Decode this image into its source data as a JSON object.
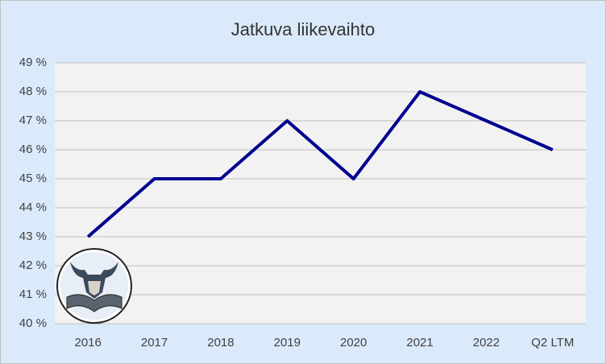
{
  "chart_data": {
    "type": "line",
    "title": "Jatkuva liikevaihto",
    "categories": [
      "2016",
      "2017",
      "2018",
      "2019",
      "2020",
      "2021",
      "2022",
      "Q2 LTM"
    ],
    "values": [
      43,
      45,
      45,
      47,
      45,
      48,
      47,
      46
    ],
    "color": "#000090",
    "ylim": [
      40,
      49
    ],
    "yticks": [
      {
        "value": 40,
        "label": "40 %"
      },
      {
        "value": 41,
        "label": "41 %"
      },
      {
        "value": 42,
        "label": "42 %"
      },
      {
        "value": 43,
        "label": "43 %"
      },
      {
        "value": 44,
        "label": "44 %"
      },
      {
        "value": 45,
        "label": "45 %"
      },
      {
        "value": 46,
        "label": "46 %"
      },
      {
        "value": 47,
        "label": "47 %"
      },
      {
        "value": 48,
        "label": "48 %"
      },
      {
        "value": 49,
        "label": "49 %"
      }
    ],
    "grid": true
  }
}
